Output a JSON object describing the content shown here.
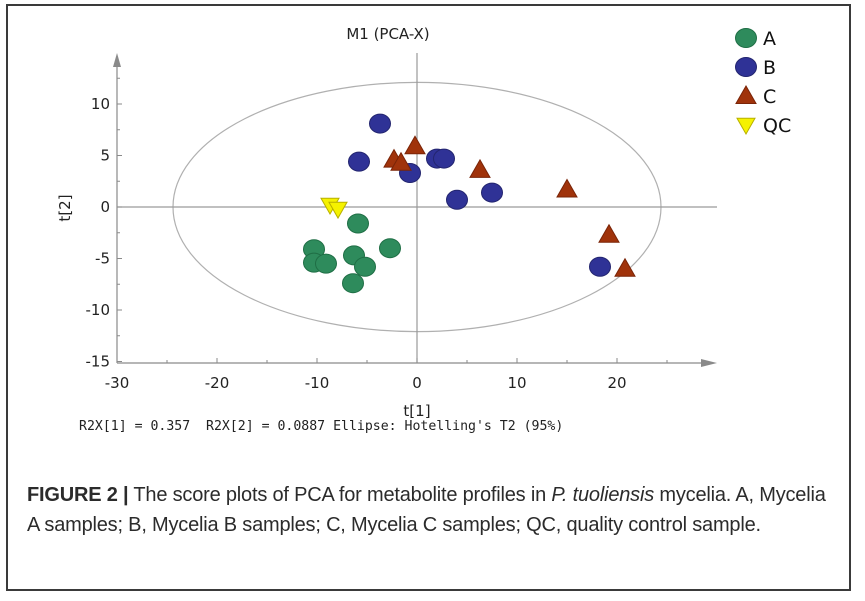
{
  "chart_data": {
    "type": "scatter",
    "title": "M1 (PCA-X)",
    "xlabel": "t[1]",
    "ylabel": "t[2]",
    "xlim": [
      -30,
      30
    ],
    "ylim": [
      -15,
      14
    ],
    "xticks": [
      -30,
      -20,
      -10,
      0,
      10,
      20
    ],
    "yticks": [
      -15,
      -10,
      -5,
      0,
      5,
      10
    ],
    "xticks_minor_step": 5,
    "yticks_minor_step": 2.5,
    "grid": false,
    "zero_lines": true,
    "legend_position": "top-right",
    "ellipse": {
      "label": "Hotelling's T2 (95%)",
      "center": [
        0,
        0
      ],
      "semi_axis_x": 24.4,
      "semi_axis_y": 12.1,
      "color": "#b0b0b0"
    },
    "series": [
      {
        "name": "A",
        "marker": "circle",
        "color": "#2e8b5c",
        "stroke": "#1f6e45",
        "points": [
          [
            -5.9,
            -1.6
          ],
          [
            -10.3,
            -4.1
          ],
          [
            -10.3,
            -5.4
          ],
          [
            -9.1,
            -5.5
          ],
          [
            -6.3,
            -4.7
          ],
          [
            -5.2,
            -5.8
          ],
          [
            -6.4,
            -7.4
          ],
          [
            -2.7,
            -4.0
          ]
        ]
      },
      {
        "name": "B",
        "marker": "circle",
        "color": "#2f3296",
        "stroke": "#23256f",
        "points": [
          [
            -3.7,
            8.1
          ],
          [
            -5.8,
            4.4
          ],
          [
            -0.7,
            3.3
          ],
          [
            2.0,
            4.7
          ],
          [
            2.7,
            4.7
          ],
          [
            4.0,
            0.7
          ],
          [
            7.5,
            1.4
          ],
          [
            18.3,
            -5.8
          ]
        ]
      },
      {
        "name": "C",
        "marker": "triangle-up",
        "color": "#a0330b",
        "stroke": "#7a2407",
        "points": [
          [
            -0.2,
            5.9
          ],
          [
            -2.3,
            4.6
          ],
          [
            -1.6,
            4.3
          ],
          [
            6.3,
            3.6
          ],
          [
            15.0,
            1.7
          ],
          [
            19.2,
            -2.7
          ],
          [
            20.8,
            -6.0
          ]
        ]
      },
      {
        "name": "QC",
        "marker": "triangle-down",
        "color": "#f5f200",
        "stroke": "#b8b000",
        "points": [
          [
            -8.7,
            0.2
          ],
          [
            -7.9,
            -0.2
          ]
        ]
      }
    ],
    "annotation": "R2X[1] = 0.357  R2X[2] = 0.0887 Ellipse: Hotelling's T2 (95%)"
  },
  "stats_line": "R2X[1] = 0.357  R2X[2] = 0.0887 Ellipse: Hotelling's T2 (95%)",
  "caption": {
    "label": "FIGURE 2 |",
    "text_before_italic": " The score plots of PCA for metabolite profiles in ",
    "italic": "P. tuoliensis",
    "text_after_italic": " mycelia. A, Mycelia A samples; B, Mycelia B samples; C, Mycelia C samples; QC, quality control sample."
  }
}
